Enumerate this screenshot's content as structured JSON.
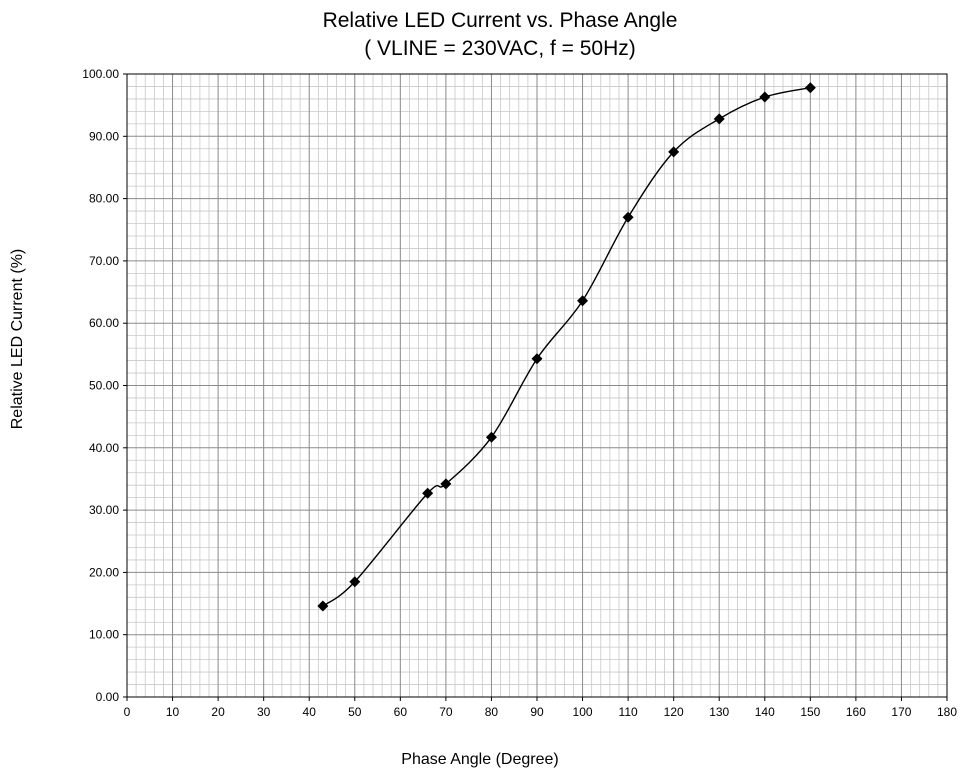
{
  "chart_data": {
    "type": "line",
    "title": "Relative LED Current vs.  Phase Angle",
    "subtitle": "( VLINE  = 230VAC,  f = 50Hz)",
    "xlabel": "Phase Angle (Degree)",
    "ylabel": "Relative LED Current (%)",
    "xlim": [
      0,
      180
    ],
    "ylim": [
      0,
      100
    ],
    "x_ticks": [
      "0",
      "10",
      "20",
      "30",
      "40",
      "50",
      "60",
      "70",
      "80",
      "90",
      "100",
      "110",
      "120",
      "130",
      "140",
      "150",
      "160",
      "170",
      "180"
    ],
    "y_ticks": [
      "0.00",
      "10.00",
      "20.00",
      "30.00",
      "40.00",
      "50.00",
      "60.00",
      "70.00",
      "80.00",
      "90.00",
      "100.00"
    ],
    "grid": true,
    "marker": "diamond",
    "smooth": true,
    "colors": {
      "line": "#000000",
      "grid_major": "#8a8a8a",
      "grid_minor": "#c8c8c8"
    },
    "series": [
      {
        "x": [
          43,
          50,
          66,
          70,
          80,
          90,
          100,
          110,
          120,
          130,
          140,
          150
        ],
        "y": [
          14.6,
          18.5,
          32.7,
          34.2,
          41.7,
          54.3,
          63.6,
          77.0,
          87.5,
          92.8,
          96.3,
          97.8
        ]
      }
    ]
  }
}
